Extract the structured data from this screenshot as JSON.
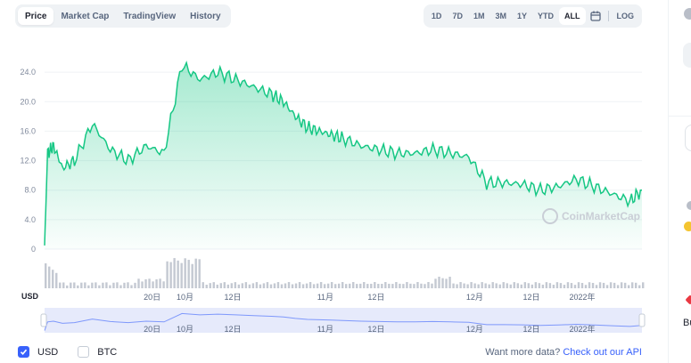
{
  "tabs": [
    {
      "label": "Price",
      "active": true
    },
    {
      "label": "Market Cap",
      "active": false
    },
    {
      "label": "TradingView",
      "active": false
    },
    {
      "label": "History",
      "active": false
    }
  ],
  "ranges": [
    {
      "label": "1D",
      "active": false
    },
    {
      "label": "7D",
      "active": false
    },
    {
      "label": "1M",
      "active": false
    },
    {
      "label": "3M",
      "active": false
    },
    {
      "label": "1Y",
      "active": false
    },
    {
      "label": "YTD",
      "active": false
    },
    {
      "label": "ALL",
      "active": true
    }
  ],
  "log_label": "LOG",
  "currency_axis_label": "USD",
  "watermark": "CoinMarketCap",
  "legend": [
    {
      "label": "USD",
      "checked": true
    },
    {
      "label": "BTC",
      "checked": false
    }
  ],
  "api_prompt": {
    "text": "Want more data?",
    "link": "Check out our API"
  },
  "side_text": "Bu",
  "colors": {
    "line": "#16c784",
    "accent": "#3861fb",
    "navigator": "#e6eafb"
  },
  "chart_data": {
    "type": "area",
    "y_ticks": [
      "24.0",
      "20.0",
      "16.0",
      "12.0",
      "8.0",
      "4.0",
      "0"
    ],
    "ylim": [
      0,
      28
    ],
    "x_tick_labels": [
      "20日",
      "10月",
      "12日",
      "11月",
      "12日",
      "12月",
      "12日",
      "2022年"
    ],
    "x": [
      0,
      0.5,
      1.5,
      3,
      5,
      8,
      11,
      14,
      17,
      20,
      23,
      26,
      29,
      32,
      35,
      38,
      40,
      42,
      44,
      46,
      48,
      50,
      53,
      56,
      59,
      62,
      65,
      68,
      71,
      74,
      77,
      80,
      83,
      86,
      89,
      92,
      95,
      98,
      100
    ],
    "values": [
      0.5,
      13,
      14,
      11,
      12,
      17,
      13.5,
      12,
      14,
      13,
      25,
      23,
      24,
      23,
      22,
      21,
      20,
      18,
      16.5,
      16,
      15.5,
      15,
      14,
      13.5,
      13,
      13,
      13.5,
      13,
      12.5,
      9,
      9,
      8.8,
      8,
      8.5,
      9.5,
      8.5,
      7.5,
      6.5,
      8
    ]
  }
}
